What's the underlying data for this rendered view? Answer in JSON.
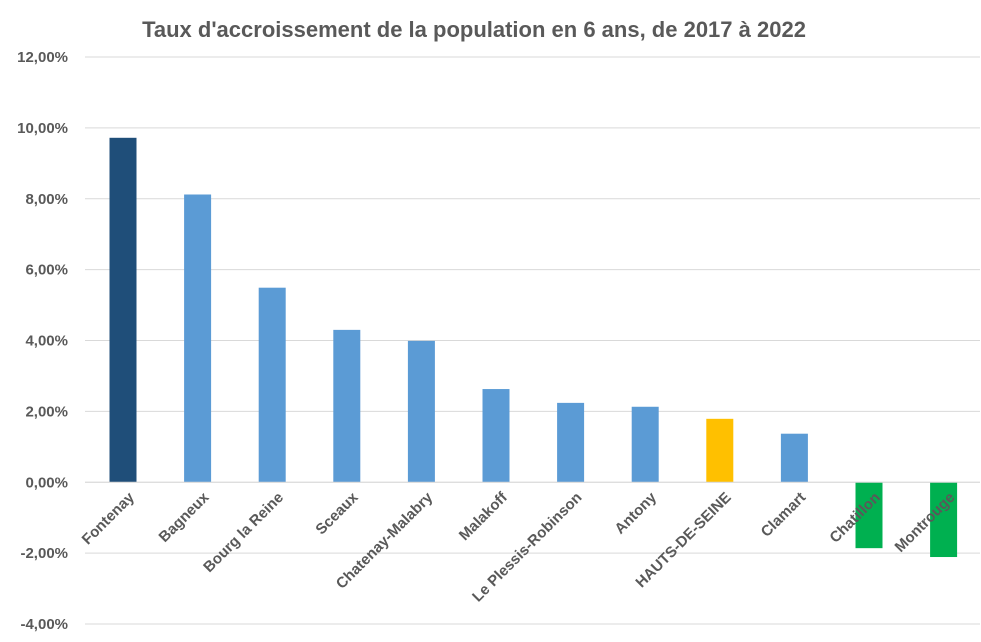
{
  "chart_data": {
    "type": "bar",
    "title": "Taux d'accroissement de la population en 6  ans, de 2017 à 2022",
    "xlabel": "",
    "ylabel": "",
    "categories": [
      "Fontenay",
      "Bagneux",
      "Bourg la Reine",
      "Sceaux",
      "Chatenay-Malabry",
      "Malakoff",
      "Le Plessis-Robinson",
      "Antony",
      "HAUTS-DE-SEINE",
      "Clamart",
      "Chatillon",
      "Montrouge"
    ],
    "values": [
      9.72,
      8.12,
      5.49,
      4.3,
      3.99,
      2.63,
      2.24,
      2.13,
      1.79,
      1.37,
      -1.86,
      -2.11
    ],
    "bar_colors": [
      "#1f4e79",
      "#5b9bd5",
      "#5b9bd5",
      "#5b9bd5",
      "#5b9bd5",
      "#5b9bd5",
      "#5b9bd5",
      "#5b9bd5",
      "#ffc000",
      "#5b9bd5",
      "#00b050",
      "#00b050"
    ],
    "ylim": [
      -4,
      12
    ],
    "y_ticks": [
      12,
      10,
      8,
      6,
      4,
      2,
      0,
      -2,
      -4
    ],
    "y_tick_labels": [
      "12,00%",
      "10,00%",
      "8,00%",
      "6,00%",
      "4,00%",
      "2,00%",
      "0,00%",
      "-2,00%",
      "-4,00%"
    ],
    "grid": true,
    "legend": "none"
  }
}
